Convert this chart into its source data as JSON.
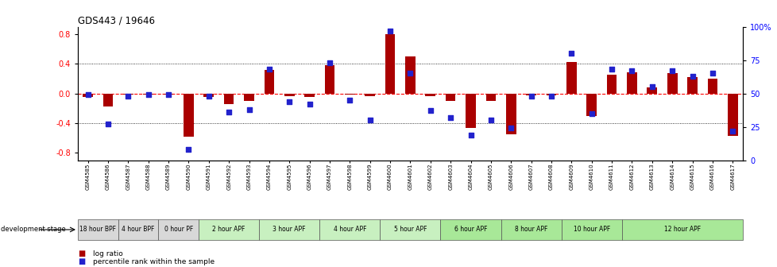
{
  "title": "GDS443 / 19646",
  "samples": [
    "GSM4585",
    "GSM4586",
    "GSM4587",
    "GSM4588",
    "GSM4589",
    "GSM4590",
    "GSM4591",
    "GSM4592",
    "GSM4593",
    "GSM4594",
    "GSM4595",
    "GSM4596",
    "GSM4597",
    "GSM4598",
    "GSM4599",
    "GSM4600",
    "GSM4601",
    "GSM4602",
    "GSM4603",
    "GSM4604",
    "GSM4605",
    "GSM4606",
    "GSM4607",
    "GSM4608",
    "GSM4609",
    "GSM4610",
    "GSM4611",
    "GSM4612",
    "GSM4613",
    "GSM4614",
    "GSM4615",
    "GSM4616",
    "GSM4617"
  ],
  "log_ratio": [
    -0.05,
    -0.18,
    -0.02,
    -0.01,
    -0.01,
    -0.58,
    -0.05,
    -0.14,
    -0.1,
    0.32,
    -0.04,
    -0.05,
    0.38,
    -0.01,
    -0.04,
    0.8,
    0.5,
    -0.04,
    -0.1,
    -0.47,
    -0.1,
    -0.55,
    -0.03,
    -0.03,
    0.42,
    -0.3,
    0.25,
    0.29,
    0.08,
    0.27,
    0.22,
    0.2,
    -0.57
  ],
  "percentile": [
    49,
    27,
    48,
    49,
    49,
    8,
    48,
    36,
    38,
    68,
    44,
    42,
    73,
    45,
    30,
    97,
    65,
    37,
    32,
    19,
    30,
    24,
    48,
    48,
    80,
    35,
    68,
    67,
    55,
    67,
    63,
    65,
    22
  ],
  "stage_groups": [
    {
      "label": "18 hour BPF",
      "start": 0,
      "end": 2,
      "color": "#d8d8d8"
    },
    {
      "label": "4 hour BPF",
      "start": 2,
      "end": 4,
      "color": "#d8d8d8"
    },
    {
      "label": "0 hour PF",
      "start": 4,
      "end": 6,
      "color": "#d8d8d8"
    },
    {
      "label": "2 hour APF",
      "start": 6,
      "end": 9,
      "color": "#c8f0c0"
    },
    {
      "label": "3 hour APF",
      "start": 9,
      "end": 12,
      "color": "#c8f0c0"
    },
    {
      "label": "4 hour APF",
      "start": 12,
      "end": 15,
      "color": "#c8f0c0"
    },
    {
      "label": "5 hour APF",
      "start": 15,
      "end": 18,
      "color": "#c8f0c0"
    },
    {
      "label": "6 hour APF",
      "start": 18,
      "end": 21,
      "color": "#a8e898"
    },
    {
      "label": "8 hour APF",
      "start": 21,
      "end": 24,
      "color": "#a8e898"
    },
    {
      "label": "10 hour APF",
      "start": 24,
      "end": 27,
      "color": "#a8e898"
    },
    {
      "label": "12 hour APF",
      "start": 27,
      "end": 33,
      "color": "#a8e898"
    }
  ],
  "bar_color": "#aa0000",
  "dot_color": "#2222cc",
  "ylim_left": [
    -0.9,
    0.9
  ],
  "ylim_right": [
    0,
    100
  ],
  "yticks_left": [
    -0.8,
    -0.4,
    0.0,
    0.4,
    0.8
  ],
  "yticks_right": [
    0,
    25,
    50,
    75,
    100
  ],
  "hlines_dotted": [
    -0.4,
    0.4
  ],
  "hline_dashed": 0.0,
  "legend_items": [
    {
      "label": "log ratio",
      "color": "#aa0000"
    },
    {
      "label": "percentile rank within the sample",
      "color": "#2222cc"
    }
  ],
  "bar_width": 0.5,
  "dot_size": 15
}
